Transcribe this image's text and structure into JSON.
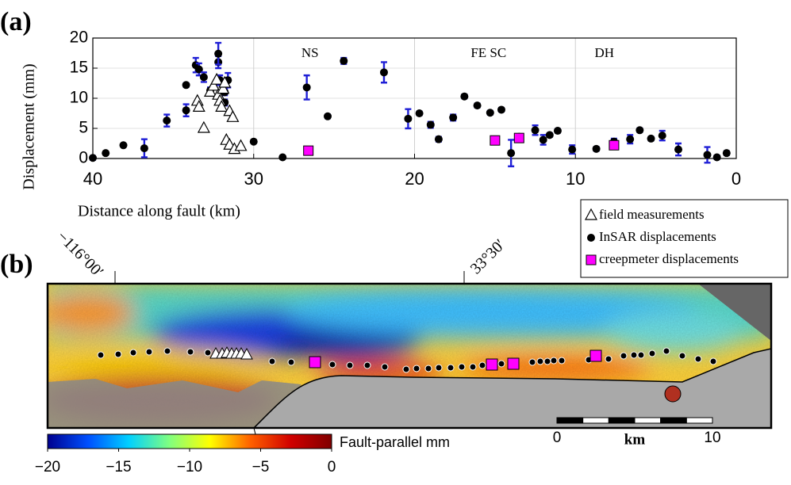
{
  "chart_data": [
    {
      "type": "scatter",
      "panel_label": "(a)",
      "xlabel": "Distance along fault (km)",
      "ylabel": "Displacement (mm)",
      "xlim": [
        40,
        0
      ],
      "xticks": [
        40,
        30,
        20,
        10,
        0
      ],
      "ylim": [
        0,
        20
      ],
      "yticks": [
        0,
        5,
        10,
        15,
        20
      ],
      "grid": true,
      "annotations": [
        {
          "text": "NS",
          "x": 26.5
        },
        {
          "text": "FE SC",
          "x": 15.4
        },
        {
          "text": "DH",
          "x": 8.2
        }
      ],
      "legend": "outside lower right",
      "series": [
        {
          "name": "field measurements",
          "marker": "triangle",
          "color": "#ffffff",
          "x": [
            33.5,
            33.4,
            33.1,
            32.7,
            32.5,
            32.3,
            32.2,
            32.1,
            32.0,
            31.9,
            31.8,
            31.5,
            31.3,
            31.7,
            31.5,
            31.2,
            30.8
          ],
          "values": [
            9.5,
            8.5,
            5.0,
            11.0,
            12.0,
            13.0,
            10.5,
            9.5,
            8.5,
            11.5,
            12.5,
            7.8,
            6.8,
            3.0,
            2.2,
            1.5,
            2.0
          ]
        },
        {
          "name": "InSAR displacements",
          "marker": "circle",
          "color": "#000000",
          "error_color": "#1f1fd6",
          "x": [
            40.0,
            39.2,
            38.1,
            36.8,
            35.4,
            34.2,
            34.2,
            33.6,
            33.4,
            33.1,
            32.7,
            32.2,
            32.2,
            32.1,
            31.8,
            31.8,
            31.6,
            30.0,
            28.2,
            26.7,
            25.4,
            24.4,
            21.9,
            20.4,
            19.7,
            19.0,
            18.5,
            17.6,
            16.9,
            16.1,
            15.3,
            14.6,
            14.0,
            13.5,
            12.5,
            12.0,
            11.6,
            11.1,
            10.2,
            8.7,
            7.6,
            6.6,
            6.0,
            5.3,
            4.6,
            3.6,
            1.8,
            1.2,
            0.6
          ],
          "values": [
            0.1,
            0.9,
            2.2,
            1.7,
            6.3,
            8.0,
            12.2,
            15.5,
            14.8,
            13.5,
            11.3,
            16.0,
            17.4,
            13.0,
            11.0,
            9.3,
            13.0,
            2.8,
            0.2,
            11.8,
            7.0,
            16.2,
            14.3,
            6.6,
            7.5,
            5.6,
            3.2,
            6.8,
            10.3,
            8.8,
            7.6,
            8.1,
            0.9,
            3.6,
            4.7,
            3.1,
            3.9,
            4.6,
            1.5,
            1.6,
            2.8,
            3.2,
            4.7,
            3.3,
            3.8,
            1.5,
            0.6,
            0.2,
            0.9
          ],
          "errors": [
            0.3,
            0.2,
            0.2,
            1.5,
            1.0,
            1.0,
            0.3,
            1.2,
            1.0,
            0.8,
            0.5,
            1.0,
            1.8,
            0.8,
            0.5,
            0.5,
            1.2,
            0.2,
            0.2,
            2.0,
            0.3,
            0.5,
            1.7,
            1.6,
            0.3,
            0.5,
            0.4,
            0.5,
            0.3,
            0.3,
            0.3,
            0.3,
            2.2,
            0.3,
            0.8,
            0.8,
            0.3,
            0.3,
            0.7,
            0.3,
            0.5,
            0.7,
            0.3,
            0.3,
            0.8,
            1.0,
            1.3,
            0.3,
            0.3
          ]
        },
        {
          "name": "creepmeter displacements",
          "marker": "square",
          "color": "#ff00ff",
          "x": [
            26.6,
            15.0,
            13.5,
            7.6
          ],
          "values": [
            1.3,
            3.0,
            3.4,
            2.2
          ]
        }
      ]
    },
    {
      "type": "colorbar",
      "panel_label": "(b)",
      "label": "Fault-parallel mm",
      "xlim": [
        -20,
        0
      ],
      "xticks": [
        {
          "value": -20,
          "label": "−20"
        },
        {
          "value": -15,
          "label": "−15"
        },
        {
          "value": -10,
          "label": "−10"
        },
        {
          "value": -5,
          "label": "−5"
        },
        0
      ],
      "colors": [
        "#00008f",
        "#0050ff",
        "#00d0ff",
        "#80ff80",
        "#ffff00",
        "#ff6000",
        "#d00000",
        "#800000"
      ],
      "lon_label": "−116°00′",
      "lat_label": "33°30′",
      "scale_bar": {
        "unit": "km",
        "ticks": [
          0,
          10
        ]
      }
    }
  ]
}
